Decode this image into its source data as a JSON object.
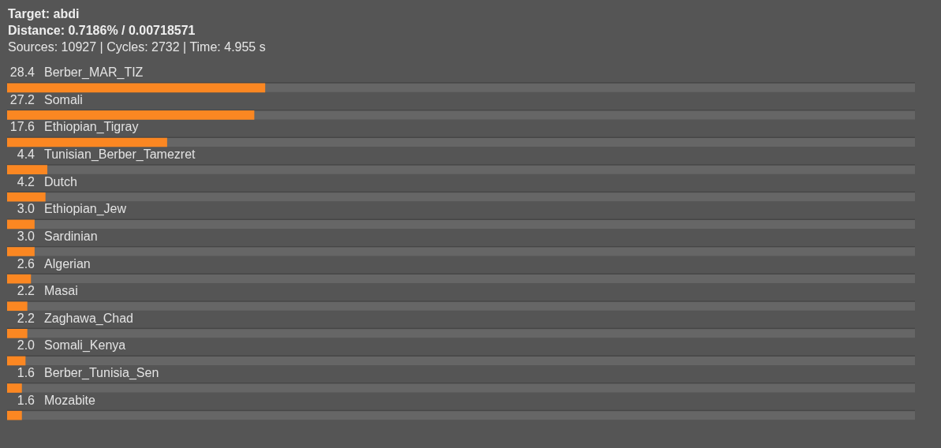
{
  "chart_data": {
    "type": "bar",
    "orientation": "horizontal",
    "title": "Target: abdi",
    "subtitle": "Distance: 0.7186% / 0.00718571",
    "annotations": [
      "Sources: 10927 | Cycles: 2732 | Time: 4.955 s"
    ],
    "categories": [
      "Berber_MAR_TIZ",
      "Somali",
      "Ethiopian_Tigray",
      "Tunisian_Berber_Tamezret",
      "Dutch",
      "Ethiopian_Jew",
      "Sardinian",
      "Algerian",
      "Masai",
      "Zaghawa_Chad",
      "Somali_Kenya",
      "Berber_Tunisia_Sen",
      "Mozabite"
    ],
    "values": [
      28.4,
      27.2,
      17.6,
      4.4,
      4.2,
      3.0,
      3.0,
      2.6,
      2.2,
      2.2,
      2.0,
      1.6,
      1.6
    ],
    "value_labels": [
      "28.4",
      "27.2",
      "17.6",
      "4.4",
      "4.2",
      "3.0",
      "3.0",
      "2.6",
      "2.2",
      "2.2",
      "2.0",
      "1.6",
      "1.6"
    ],
    "color": "#fb8722",
    "xlim": [
      0,
      100
    ],
    "tick_labels": "y"
  }
}
